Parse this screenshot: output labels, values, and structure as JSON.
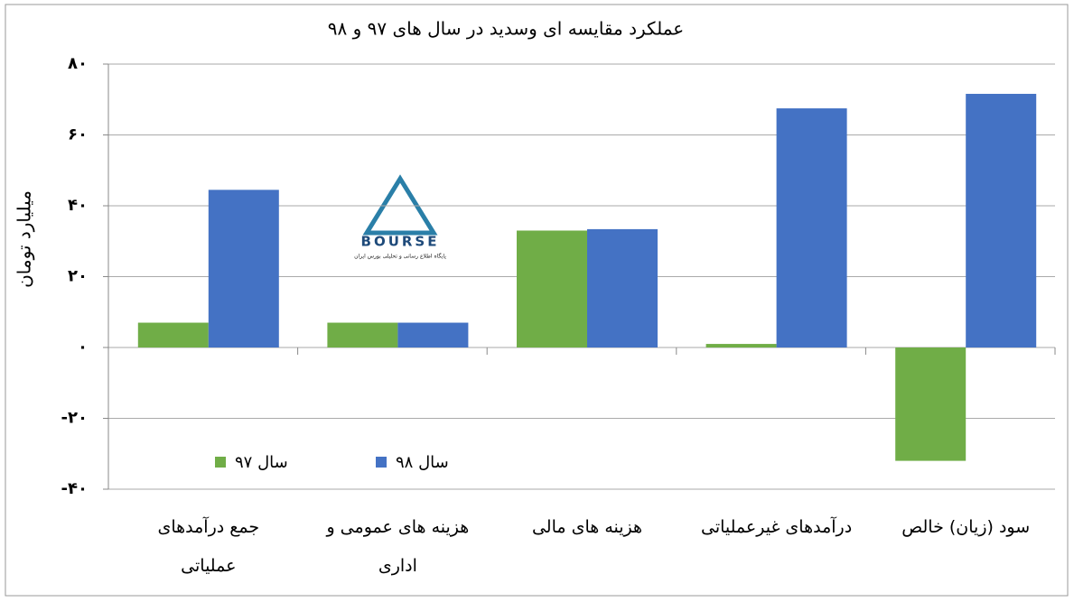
{
  "chart_data": {
    "type": "bar",
    "title": "عملکرد مقایسه ای وسدید در سال های ۹۷ و ۹۸",
    "y_label": "میلیارد تومان",
    "categories": [
      "جمع درآمدهای\nعملیاتی",
      "هزینه های عمومی و\nاداری",
      "هزینه های مالی",
      "درآمدهای غیرعملیاتی",
      "سود (زیان) خالص"
    ],
    "series": [
      {
        "name": "سال ۹۷",
        "color": "#70ad47",
        "values": [
          7,
          7,
          33,
          1,
          -32
        ]
      },
      {
        "name": "سال ۹۸",
        "color": "#4472c4",
        "values": [
          44.5,
          7,
          33.4,
          67.5,
          71.6
        ]
      }
    ],
    "ylim": [
      -40,
      80
    ],
    "yticks": [
      {
        "value": -40,
        "label": "-۴۰"
      },
      {
        "value": -20,
        "label": "-۲۰"
      },
      {
        "value": 0,
        "label": "۰"
      },
      {
        "value": 20,
        "label": "۲۰"
      },
      {
        "value": 40,
        "label": "۴۰"
      },
      {
        "value": 60,
        "label": "۶۰"
      },
      {
        "value": 80,
        "label": "۸۰"
      }
    ],
    "grid": true,
    "legend": "lower left"
  },
  "watermark": {
    "text": "BOURSE",
    "subtitle": "پایگاه اطلاع رسانی و تحلیلی بورس ایران"
  }
}
